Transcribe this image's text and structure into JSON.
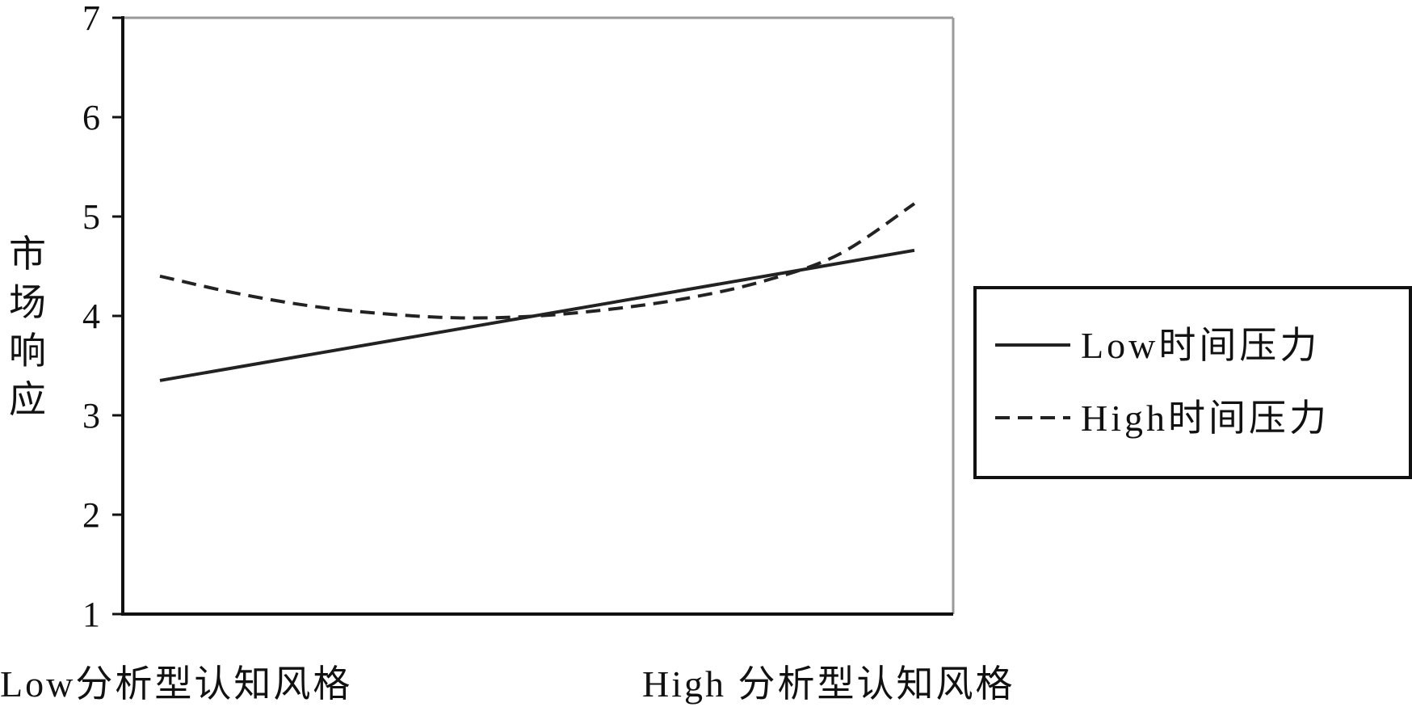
{
  "chart_data": {
    "type": "line",
    "categories": [
      "Low分析型认知风格",
      "High 分析型认知风格"
    ],
    "ylabel": "市场响应",
    "ylim": [
      1,
      7
    ],
    "yticks": [
      "1",
      "2",
      "3",
      "4",
      "5",
      "6",
      "7"
    ],
    "grid": false,
    "legend_position": "right",
    "series": [
      {
        "name": "Low时间压力",
        "style": "solid",
        "color": "#222222",
        "x": [
          0,
          1
        ],
        "values": [
          3.35,
          4.66
        ]
      },
      {
        "name": "High时间压力",
        "style": "dashed",
        "color": "#222222",
        "x": [
          0,
          0.1,
          0.2,
          0.3,
          0.4,
          0.5,
          0.6,
          0.7,
          0.8,
          0.9,
          1.0
        ],
        "values": [
          4.4,
          4.23,
          4.1,
          4.02,
          3.98,
          4.0,
          4.07,
          4.18,
          4.35,
          4.62,
          5.13
        ]
      }
    ]
  }
}
